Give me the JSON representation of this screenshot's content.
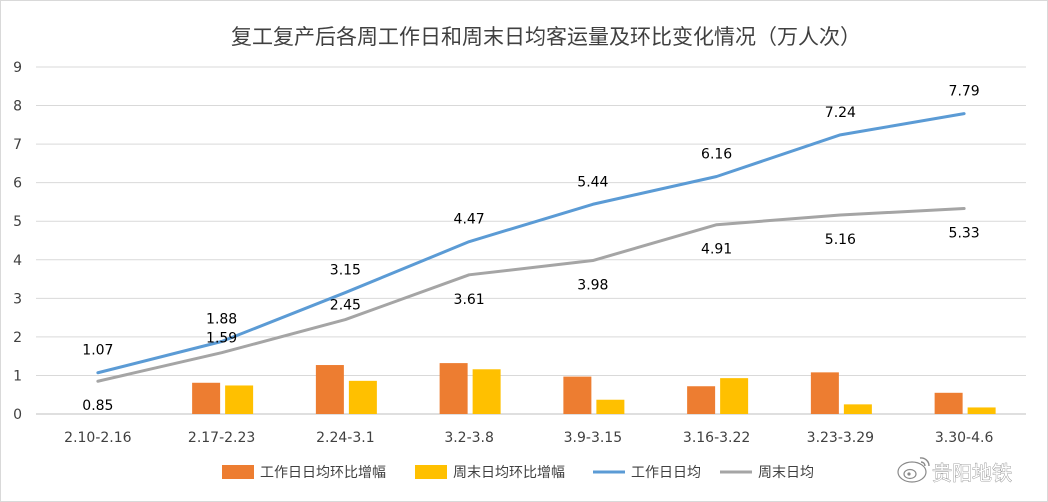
{
  "chart_data": {
    "type": "bar",
    "title": "复工复产后各周工作日和周末日均客运量及环比变化情况（万人次）",
    "categories": [
      "2.10-2.16",
      "2.17-2.23",
      "2.24-3.1",
      "3.2-3.8",
      "3.9-3.15",
      "3.16-3.22",
      "3.23-3.29",
      "3.30-4.6"
    ],
    "ylim": [
      0,
      9
    ],
    "yticks": [
      "0",
      "1",
      "2",
      "3",
      "4",
      "5",
      "6",
      "7",
      "8",
      "9"
    ],
    "grid": true,
    "legend_position": "bottom",
    "bar_series": [
      {
        "name": "工作日日均环比增幅",
        "color": "#ED7D31",
        "values": [
          null,
          0.81,
          1.27,
          1.32,
          0.97,
          0.72,
          1.08,
          0.55
        ]
      },
      {
        "name": "周末日均环比增幅",
        "color": "#FFC000",
        "values": [
          null,
          0.74,
          0.86,
          1.16,
          0.37,
          0.93,
          0.25,
          0.17
        ]
      }
    ],
    "line_series": [
      {
        "name": "工作日日均",
        "color": "#5B9BD5",
        "values": [
          1.07,
          1.88,
          3.15,
          4.47,
          5.44,
          6.16,
          7.24,
          7.79
        ],
        "labels": [
          "1.07",
          "1.88",
          "3.15",
          "4.47",
          "5.44",
          "6.16",
          "7.24",
          "7.79"
        ]
      },
      {
        "name": "周末日均",
        "color": "#A5A5A5",
        "values": [
          0.85,
          1.59,
          2.45,
          3.61,
          3.98,
          4.91,
          5.16,
          5.33
        ],
        "labels": [
          "0.85",
          "1.59",
          "2.45",
          "3.61",
          "3.98",
          "4.91",
          "5.16",
          "5.33"
        ]
      }
    ]
  },
  "watermark": {
    "text": "贵阳地铁",
    "icon": "weibo-icon"
  }
}
